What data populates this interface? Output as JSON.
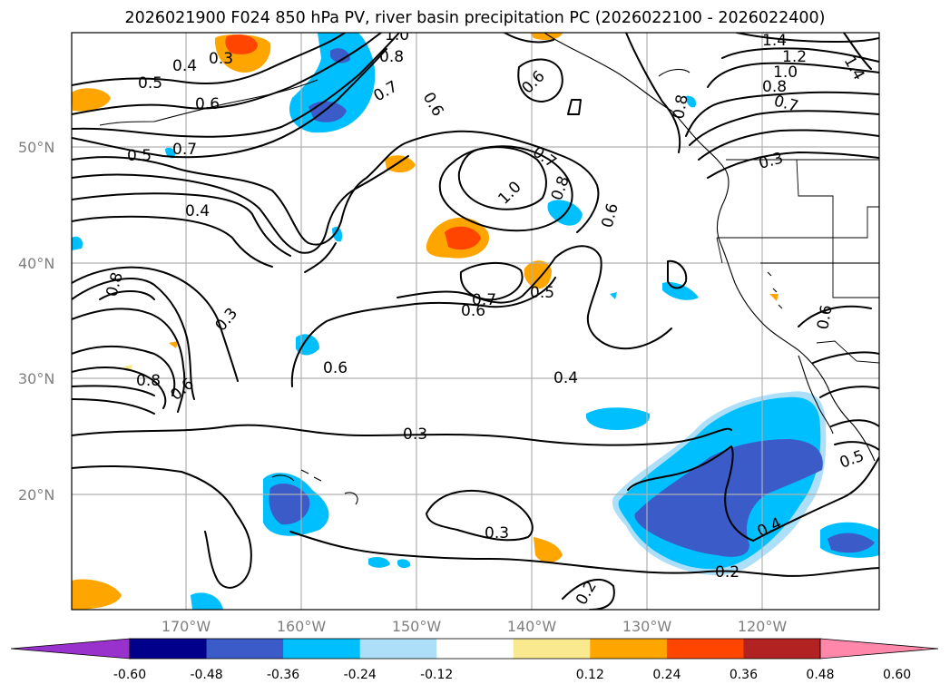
{
  "title": "2026021900 F024 850 hPa PV, river basin precipitation PC (2026022100 - 2026022400)",
  "lat_ticks": [
    "50°N",
    "40°N",
    "30°N",
    "20°N"
  ],
  "lon_ticks": [
    "170°W",
    "160°W",
    "150°W",
    "140°W",
    "130°W",
    "120°W"
  ],
  "colorbar": {
    "levels": [
      "-0.60",
      "-0.48",
      "-0.36",
      "-0.24",
      "-0.12",
      "0.12",
      "0.24",
      "0.36",
      "0.48",
      "0.60"
    ],
    "colors": [
      "#9932cc",
      "#00008b",
      "#3a5bc8",
      "#00bfff",
      "#ade0f8",
      "#ffffff",
      "#fbe98f",
      "#ffa500",
      "#ff4500",
      "#b22222",
      "#ff88aa"
    ]
  },
  "contour_labels": [
    "0.3",
    "0.4",
    "0.5",
    "0.6",
    "0.7",
    "0.8",
    "1.0",
    "1.2",
    "1.4",
    "0.2"
  ]
}
